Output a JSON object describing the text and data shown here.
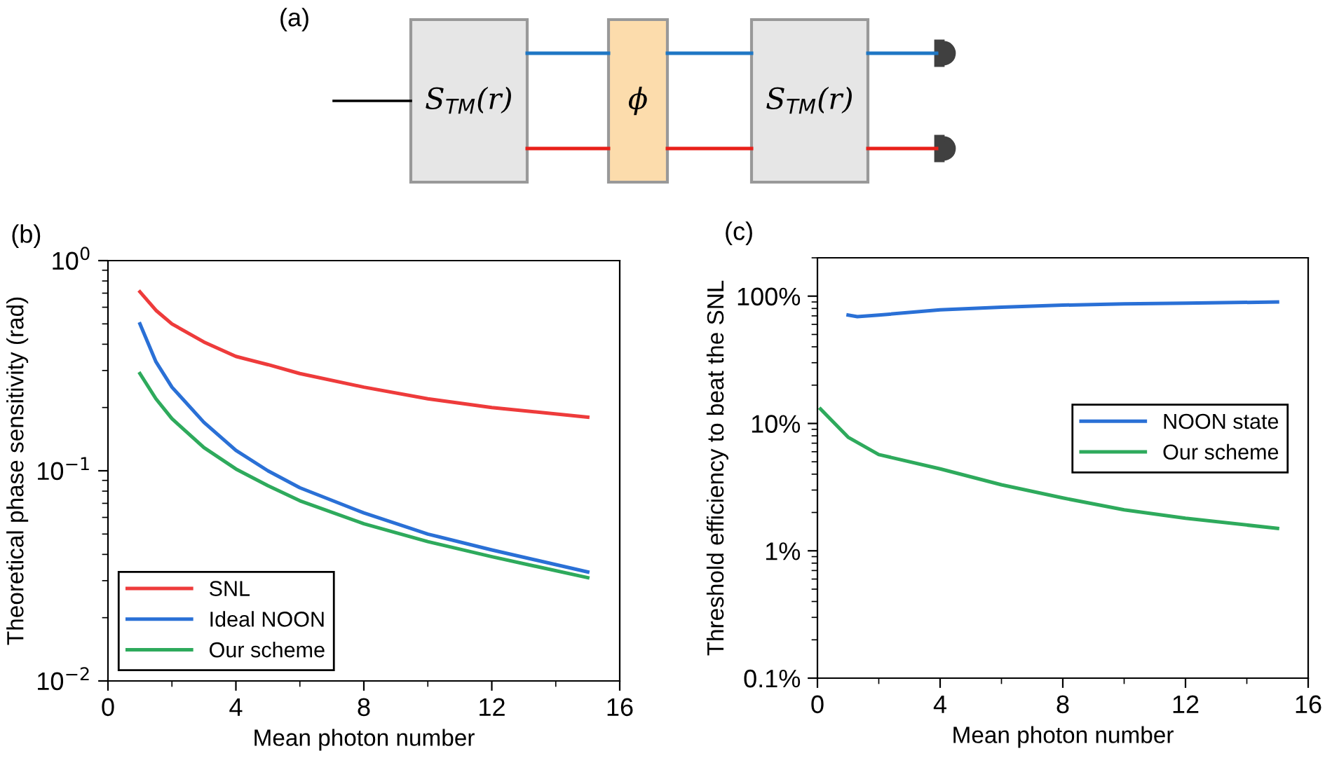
{
  "chart_data": [
    {
      "type": "other",
      "title": "(a)",
      "annotations": [
        "S$_{TM}$(r)",
        "ϕ",
        "S$_{TM}$(r)"
      ]
    },
    {
      "type": "line",
      "title": "(b)",
      "xlabel": "Mean photon number",
      "ylabel": "Theoretical phase sensitivity (rad)",
      "log": "y",
      "legend": "bottom left",
      "grid": false,
      "xlim": [
        0,
        16
      ],
      "xticks": [
        0,
        4,
        8,
        12,
        16
      ],
      "ylim": [
        0.01,
        1
      ],
      "yticks": [
        {
          "value": 0.01,
          "label": "10$^{−2}$"
        },
        {
          "value": 0.1,
          "label": "10$^{−1}$"
        },
        {
          "value": 1,
          "label": "10$^{0}$"
        }
      ],
      "x": [
        1,
        1.5,
        2,
        3,
        4,
        5,
        6,
        8,
        10,
        12,
        15
      ],
      "series": [
        {
          "name": "SNL",
          "color": "#ee3b3b",
          "values": [
            0.71,
            0.58,
            0.5,
            0.41,
            0.35,
            0.32,
            0.29,
            0.25,
            0.22,
            0.2,
            0.18
          ]
        },
        {
          "name": "Ideal NOON",
          "color": "#2a70d6",
          "values": [
            0.5,
            0.33,
            0.25,
            0.17,
            0.125,
            0.1,
            0.083,
            0.063,
            0.05,
            0.042,
            0.033
          ]
        },
        {
          "name": "Our scheme",
          "color": "#2eaa5c",
          "values": [
            0.29,
            0.22,
            0.177,
            0.129,
            0.102,
            0.085,
            0.072,
            0.056,
            0.046,
            0.039,
            0.031
          ]
        }
      ]
    },
    {
      "type": "line",
      "title": "(c)",
      "xlabel": "Mean photon number",
      "ylabel": "Threshold efficiency to beat the SNL",
      "log": "y",
      "legend": "right",
      "grid": false,
      "xlim": [
        0,
        16
      ],
      "xticks": [
        0,
        4,
        8,
        12,
        16
      ],
      "ylim": [
        0.1,
        200
      ],
      "yticks": [
        {
          "value": 0.1,
          "label": "0.1%"
        },
        {
          "value": 1,
          "label": "1%"
        },
        {
          "value": 10,
          "label": "10%"
        },
        {
          "value": 100,
          "label": "100%"
        }
      ],
      "series": [
        {
          "name": "NOON state",
          "color": "#2a70d6",
          "x": [
            1,
            1.3,
            2,
            4,
            6,
            8,
            10,
            12,
            15
          ],
          "values": [
            71,
            69,
            71,
            78,
            82,
            85,
            87,
            88,
            90
          ]
        },
        {
          "name": "Our scheme",
          "color": "#2eaa5c",
          "x": [
            0.1,
            1,
            2,
            4,
            6,
            8,
            10,
            12,
            15
          ],
          "values": [
            13,
            7.8,
            5.7,
            4.4,
            3.3,
            2.6,
            2.1,
            1.8,
            1.5
          ]
        }
      ]
    }
  ]
}
